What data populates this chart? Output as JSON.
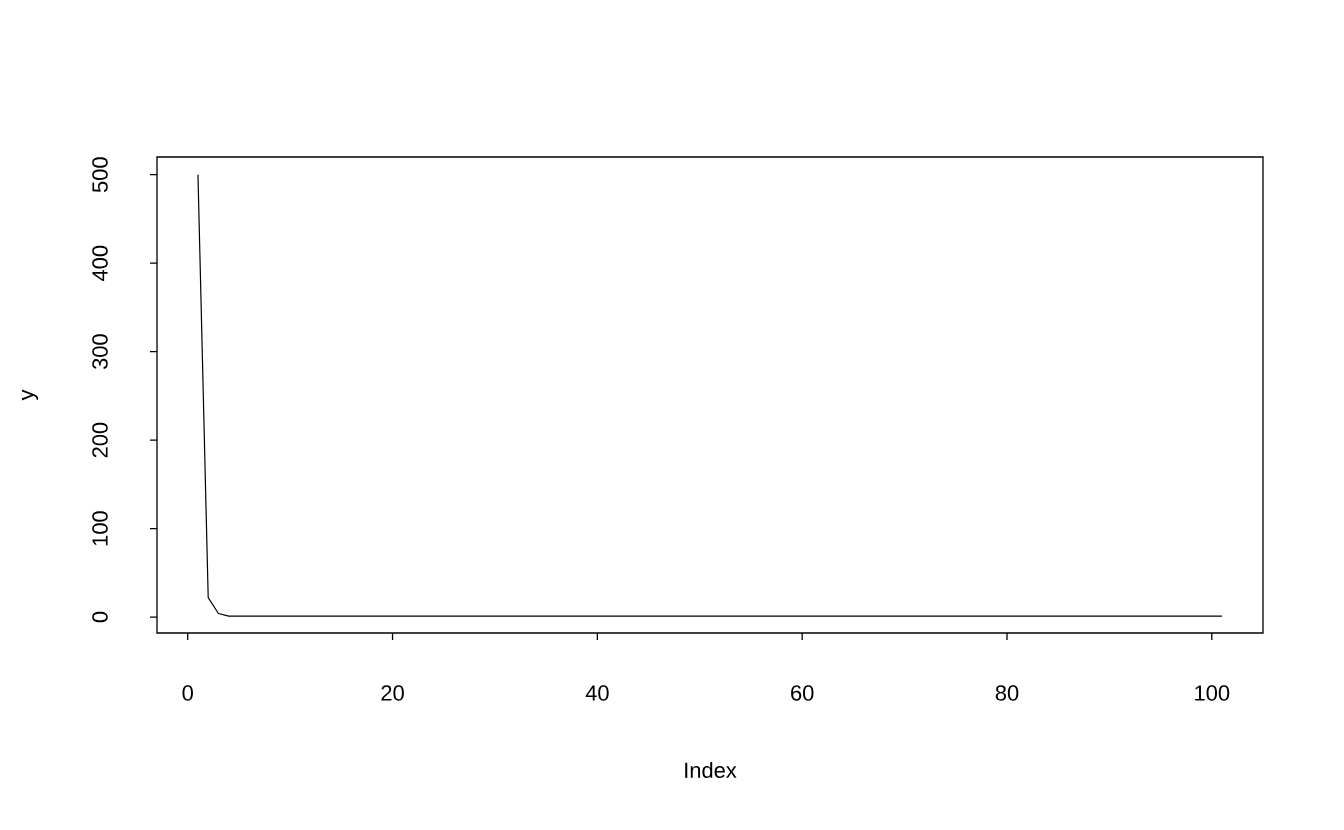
{
  "chart_data": {
    "type": "line",
    "xlabel": "Index",
    "ylabel": "y",
    "color": "#000000",
    "x": [
      1,
      2,
      3,
      4,
      5,
      6,
      7,
      8,
      9,
      10,
      11,
      12,
      13,
      14,
      15,
      16,
      17,
      18,
      19,
      20,
      21,
      22,
      23,
      24,
      25,
      26,
      27,
      28,
      29,
      30,
      31,
      32,
      33,
      34,
      35,
      36,
      37,
      38,
      39,
      40,
      41,
      42,
      43,
      44,
      45,
      46,
      47,
      48,
      49,
      50,
      51,
      52,
      53,
      54,
      55,
      56,
      57,
      58,
      59,
      60,
      61,
      62,
      63,
      64,
      65,
      66,
      67,
      68,
      69,
      70,
      71,
      72,
      73,
      74,
      75,
      76,
      77,
      78,
      79,
      80,
      81,
      82,
      83,
      84,
      85,
      86,
      87,
      88,
      89,
      90,
      91,
      92,
      93,
      94,
      95,
      96,
      97,
      98,
      99,
      100,
      101
    ],
    "values": [
      500,
      22,
      4,
      1,
      1,
      1,
      1,
      1,
      1,
      1,
      1,
      1,
      1,
      1,
      1,
      1,
      1,
      1,
      1,
      1,
      1,
      1,
      1,
      1,
      1,
      1,
      1,
      1,
      1,
      1,
      1,
      1,
      1,
      1,
      1,
      1,
      1,
      1,
      1,
      1,
      1,
      1,
      1,
      1,
      1,
      1,
      1,
      1,
      1,
      1,
      1,
      1,
      1,
      1,
      1,
      1,
      1,
      1,
      1,
      1,
      1,
      1,
      1,
      1,
      1,
      1,
      1,
      1,
      1,
      1,
      1,
      1,
      1,
      1,
      1,
      1,
      1,
      1,
      1,
      1,
      1,
      1,
      1,
      1,
      1,
      1,
      1,
      1,
      1,
      1,
      1,
      1,
      1,
      1,
      1,
      1,
      1,
      1,
      1,
      1,
      1
    ],
    "xlim": [
      -3,
      105
    ],
    "ylim": [
      -18,
      520
    ],
    "xticks": [
      0,
      20,
      40,
      60,
      80,
      100
    ],
    "yticks": [
      0,
      100,
      200,
      300,
      400,
      500
    ],
    "marker": "none",
    "line_style": "solid",
    "grid": false
  }
}
